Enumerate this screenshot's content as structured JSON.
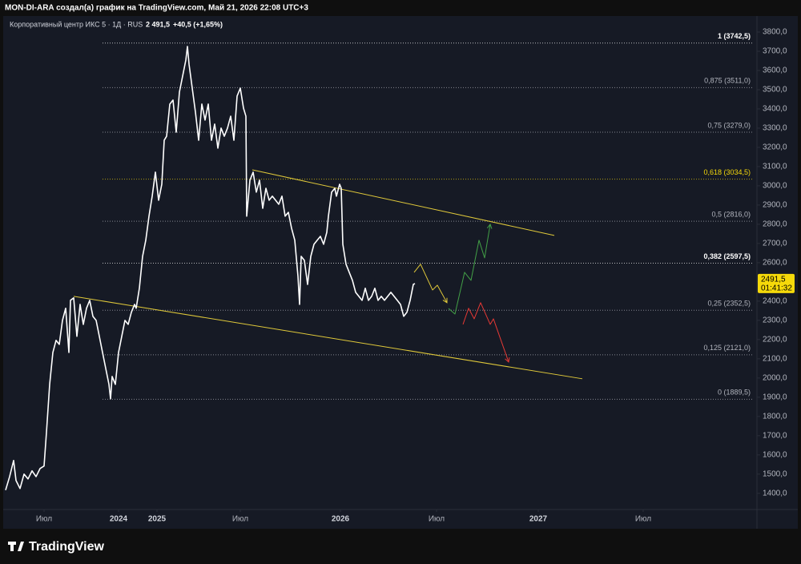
{
  "header": {
    "author_line": "MON-DI-ARA создал(а) график на TradingView.com, Май 21, 2026 22:08 UTC+3"
  },
  "chart_data": {
    "type": "line",
    "title": "Корпоративный центр ИКС 5 · 1Д · RUS",
    "last_price_text": "2 491,5",
    "change_text": "+40,5 (+1,65%)",
    "xlim": [
      0,
      940
    ],
    "xticks": [
      {
        "value": 50,
        "label": "Июл"
      },
      {
        "value": 143,
        "label": "2024"
      },
      {
        "value": 191,
        "label": "2025"
      },
      {
        "value": 295,
        "label": "Июл"
      },
      {
        "value": 420,
        "label": "2026"
      },
      {
        "value": 540,
        "label": "Июл"
      },
      {
        "value": 667,
        "label": "2027"
      },
      {
        "value": 798,
        "label": "Июл"
      }
    ],
    "ylim": [
      1320,
      3850
    ],
    "yticks": [
      {
        "value": 1400,
        "label": "1400,0"
      },
      {
        "value": 1500,
        "label": "1500,0"
      },
      {
        "value": 1600,
        "label": "1600,0"
      },
      {
        "value": 1700,
        "label": "1700,0"
      },
      {
        "value": 1800,
        "label": "1800,0"
      },
      {
        "value": 1900,
        "label": "1900,0"
      },
      {
        "value": 2000,
        "label": "2000,0"
      },
      {
        "value": 2100,
        "label": "2100,0"
      },
      {
        "value": 2200,
        "label": "2200,0"
      },
      {
        "value": 2300,
        "label": "2300,0"
      },
      {
        "value": 2400,
        "label": "2400,0"
      },
      {
        "value": 2500,
        "label": "2500,0"
      },
      {
        "value": 2600,
        "label": "2600,0"
      },
      {
        "value": 2700,
        "label": "2700,0"
      },
      {
        "value": 2800,
        "label": "2800,0"
      },
      {
        "value": 2900,
        "label": "2900,0"
      },
      {
        "value": 3000,
        "label": "3000,0"
      },
      {
        "value": 3100,
        "label": "3100,0"
      },
      {
        "value": 3200,
        "label": "3200,0"
      },
      {
        "value": 3300,
        "label": "3300,0"
      },
      {
        "value": 3400,
        "label": "3400,0"
      },
      {
        "value": 3500,
        "label": "3500,0"
      },
      {
        "value": 3600,
        "label": "3600,0"
      },
      {
        "value": 3700,
        "label": "3700,0"
      },
      {
        "value": 3800,
        "label": "3800,0"
      }
    ],
    "series": [
      {
        "color": "#ffffff",
        "x": [
          2,
          7,
          12,
          15,
          20,
          25,
          30,
          35,
          40,
          45,
          50,
          53,
          57,
          61,
          65,
          69,
          73,
          77,
          81,
          83,
          87,
          91,
          95,
          99,
          103,
          107,
          111,
          115,
          119,
          123,
          127,
          131,
          133,
          135,
          139,
          143,
          147,
          151,
          155,
          159,
          163,
          165,
          169,
          173,
          177,
          181,
          185,
          189,
          193,
          197,
          200,
          203,
          207,
          211,
          215,
          219,
          223,
          227,
          229,
          231,
          235,
          239,
          243,
          247,
          251,
          255,
          259,
          263,
          267,
          271,
          275,
          279,
          283,
          287,
          291,
          295,
          299,
          302,
          303,
          307,
          311,
          315,
          319,
          323,
          327,
          331,
          335,
          339,
          343,
          347,
          351,
          355,
          359,
          363,
          367,
          369,
          371,
          375,
          379,
          383,
          387,
          391,
          395,
          399,
          403,
          405,
          409,
          413,
          415,
          419,
          421,
          423,
          427,
          431,
          435,
          439,
          443,
          447,
          451,
          455,
          459,
          463,
          467,
          471,
          475,
          479,
          483,
          487,
          491,
          495,
          499,
          503,
          507,
          511,
          513
        ],
        "values": [
          1417,
          1487,
          1571,
          1467,
          1425,
          1500,
          1475,
          1517,
          1487,
          1529,
          1542,
          1717,
          1967,
          2133,
          2196,
          2175,
          2300,
          2363,
          2133,
          2404,
          2417,
          2217,
          2383,
          2279,
          2363,
          2404,
          2321,
          2300,
          2217,
          2133,
          2050,
          1967,
          1892,
          2008,
          1967,
          2133,
          2217,
          2300,
          2279,
          2342,
          2383,
          2363,
          2467,
          2633,
          2717,
          2842,
          2946,
          3071,
          2925,
          3008,
          3237,
          3258,
          3425,
          3446,
          3279,
          3488,
          3571,
          3654,
          3725,
          3633,
          3508,
          3383,
          3237,
          3425,
          3342,
          3425,
          3237,
          3321,
          3196,
          3300,
          3258,
          3300,
          3362,
          3237,
          3467,
          3508,
          3404,
          3362,
          2842,
          3029,
          3071,
          2967,
          3029,
          2883,
          2987,
          2925,
          2946,
          2925,
          2904,
          2946,
          2842,
          2862,
          2779,
          2717,
          2529,
          2383,
          2633,
          2612,
          2487,
          2633,
          2696,
          2717,
          2737,
          2696,
          2758,
          2842,
          2967,
          2987,
          2946,
          3008,
          2987,
          2696,
          2592,
          2550,
          2508,
          2446,
          2425,
          2404,
          2467,
          2404,
          2425,
          2467,
          2404,
          2425,
          2404,
          2425,
          2446,
          2425,
          2404,
          2383,
          2321,
          2342,
          2404,
          2487,
          2491.5
        ]
      }
    ],
    "trendlines": [
      {
        "color": "#e0c93a",
        "x": [
          310,
          687
        ],
        "values": [
          3083,
          2742
        ]
      },
      {
        "color": "#e0c93a",
        "x": [
          87,
          722
        ],
        "values": [
          2425,
          1996
        ]
      }
    ],
    "arrows": [
      {
        "color": "#e0c93a",
        "x": [
          512,
          520,
          535,
          541,
          553
        ],
        "values": [
          2550,
          2592,
          2458,
          2483,
          2392
        ]
      },
      {
        "color": "#43a047",
        "x": [
          555,
          563,
          575,
          583,
          593,
          600,
          607
        ],
        "values": [
          2362,
          2333,
          2550,
          2508,
          2717,
          2625,
          2800
        ]
      },
      {
        "color": "#e53935",
        "x": [
          573,
          580,
          587,
          595,
          607,
          611,
          630
        ],
        "values": [
          2279,
          2363,
          2308,
          2392,
          2279,
          2308,
          2083
        ]
      }
    ],
    "fib_levels": [
      {
        "value": 3742.5,
        "label": "1 (3742,5)",
        "color": "#ffffff"
      },
      {
        "value": 3511,
        "label": "0,875 (3511,0)",
        "color": "#b2b5be"
      },
      {
        "value": 3279,
        "label": "0,75 (3279,0)",
        "color": "#b2b5be"
      },
      {
        "value": 3034.5,
        "label": "0,618 (3034,5)",
        "color": "#f5d90a"
      },
      {
        "value": 2816,
        "label": "0,5 (2816,0)",
        "color": "#b2b5be"
      },
      {
        "value": 2597.5,
        "label": "0,382 (2597,5)",
        "color": "#ffffff"
      },
      {
        "value": 2352.5,
        "label": "0,25 (2352,5)",
        "color": "#b2b5be"
      },
      {
        "value": 2121,
        "label": "0,125 (2121,0)",
        "color": "#b2b5be"
      },
      {
        "value": 1889.5,
        "label": "0 (1889,5)",
        "color": "#b2b5be"
      }
    ],
    "price_marker": {
      "value": 2491.5,
      "label": "2491,5",
      "timer": "01:41:32"
    }
  },
  "footer": {
    "logo": "TradingView"
  }
}
